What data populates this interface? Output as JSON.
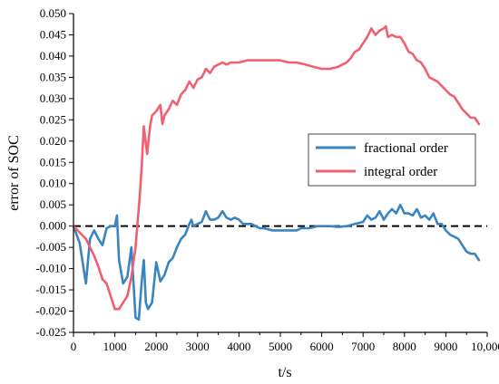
{
  "chart_data": {
    "type": "line",
    "xlabel": "t/s",
    "ylabel": "error of SOC",
    "xlim": [
      0,
      10000
    ],
    "ylim": [
      -0.025,
      0.05
    ],
    "x_ticks": [
      0,
      1000,
      2000,
      3000,
      4000,
      5000,
      6000,
      7000,
      8000,
      9000,
      10000
    ],
    "x_tick_labels": [
      "0",
      "1000",
      "2000",
      "3000",
      "4000",
      "5000",
      "6000",
      "7000",
      "8000",
      "9000",
      "10,000"
    ],
    "y_ticks": [
      -0.025,
      -0.02,
      -0.015,
      -0.01,
      -0.005,
      0.0,
      0.005,
      0.01,
      0.015,
      0.02,
      0.025,
      0.03,
      0.035,
      0.04,
      0.045,
      0.05
    ],
    "y_tick_labels": [
      "-0.025",
      "-0.020",
      "-0.015",
      "-0.010",
      "-0.005",
      "0.000",
      "0.005",
      "0.010",
      "0.015",
      "0.020",
      "0.025",
      "0.030",
      "0.035",
      "0.040",
      "0.045",
      "0.050"
    ],
    "legend_position": "right",
    "reference_line": {
      "y": 0.0,
      "style": "dashed",
      "color": "#000000"
    },
    "series": [
      {
        "name": "fractional order",
        "color": "#3a84c0",
        "points": [
          [
            0,
            0.0
          ],
          [
            150,
            -0.004
          ],
          [
            300,
            -0.0135
          ],
          [
            400,
            -0.003
          ],
          [
            500,
            -0.001
          ],
          [
            600,
            -0.003
          ],
          [
            700,
            -0.0045
          ],
          [
            800,
            -0.0005
          ],
          [
            900,
            0.0
          ],
          [
            1000,
            0.0
          ],
          [
            1050,
            0.0025
          ],
          [
            1100,
            -0.008
          ],
          [
            1200,
            -0.0135
          ],
          [
            1300,
            -0.012
          ],
          [
            1400,
            -0.005
          ],
          [
            1500,
            -0.0215
          ],
          [
            1580,
            -0.022
          ],
          [
            1650,
            -0.013
          ],
          [
            1700,
            -0.008
          ],
          [
            1750,
            -0.018
          ],
          [
            1800,
            -0.0195
          ],
          [
            1900,
            -0.018
          ],
          [
            2000,
            -0.0085
          ],
          [
            2100,
            -0.013
          ],
          [
            2200,
            -0.0115
          ],
          [
            2300,
            -0.0085
          ],
          [
            2400,
            -0.0075
          ],
          [
            2500,
            -0.005
          ],
          [
            2600,
            -0.003
          ],
          [
            2700,
            -0.002
          ],
          [
            2800,
            0.0005
          ],
          [
            2850,
            0.0015
          ],
          [
            2900,
            0.0
          ],
          [
            3000,
            0.0005
          ],
          [
            3100,
            0.001
          ],
          [
            3200,
            0.0035
          ],
          [
            3300,
            0.0015
          ],
          [
            3400,
            0.0015
          ],
          [
            3500,
            0.002
          ],
          [
            3600,
            0.0035
          ],
          [
            3700,
            0.002
          ],
          [
            3800,
            0.0015
          ],
          [
            3900,
            0.002
          ],
          [
            4000,
            0.0015
          ],
          [
            4100,
            0.0005
          ],
          [
            4200,
            0.0005
          ],
          [
            4300,
            0.0005
          ],
          [
            4400,
            0.0
          ],
          [
            4500,
            -0.0005
          ],
          [
            4600,
            -0.0005
          ],
          [
            4800,
            -0.001
          ],
          [
            5000,
            -0.001
          ],
          [
            5200,
            -0.001
          ],
          [
            5400,
            -0.001
          ],
          [
            5500,
            -0.0005
          ],
          [
            5700,
            -0.0005
          ],
          [
            5900,
            0.0
          ],
          [
            6000,
            0.0
          ],
          [
            6200,
            0.0
          ],
          [
            6400,
            -0.0002
          ],
          [
            6600,
            0.0
          ],
          [
            6800,
            0.0005
          ],
          [
            7000,
            0.001
          ],
          [
            7100,
            0.0025
          ],
          [
            7200,
            0.0015
          ],
          [
            7300,
            0.002
          ],
          [
            7400,
            0.0035
          ],
          [
            7500,
            0.0015
          ],
          [
            7600,
            0.003
          ],
          [
            7700,
            0.004
          ],
          [
            7800,
            0.003
          ],
          [
            7900,
            0.005
          ],
          [
            8000,
            0.003
          ],
          [
            8100,
            0.003
          ],
          [
            8200,
            0.0025
          ],
          [
            8300,
            0.004
          ],
          [
            8400,
            0.002
          ],
          [
            8500,
            0.0025
          ],
          [
            8600,
            0.0015
          ],
          [
            8700,
            0.003
          ],
          [
            8800,
            0.0005
          ],
          [
            8900,
            0.0005
          ],
          [
            9000,
            -0.001
          ],
          [
            9100,
            -0.002
          ],
          [
            9200,
            -0.0025
          ],
          [
            9300,
            -0.003
          ],
          [
            9400,
            -0.0045
          ],
          [
            9500,
            -0.006
          ],
          [
            9600,
            -0.0065
          ],
          [
            9700,
            -0.0065
          ],
          [
            9800,
            -0.008
          ]
        ]
      },
      {
        "name": "integral order",
        "color": "#f06070",
        "points": [
          [
            0,
            0.0
          ],
          [
            200,
            -0.002
          ],
          [
            300,
            -0.003
          ],
          [
            400,
            -0.005
          ],
          [
            500,
            -0.007
          ],
          [
            600,
            -0.0095
          ],
          [
            700,
            -0.0125
          ],
          [
            800,
            -0.0135
          ],
          [
            900,
            -0.0165
          ],
          [
            1000,
            -0.0195
          ],
          [
            1100,
            -0.0195
          ],
          [
            1200,
            -0.018
          ],
          [
            1300,
            -0.0165
          ],
          [
            1400,
            -0.012
          ],
          [
            1500,
            -0.005
          ],
          [
            1600,
            0.007
          ],
          [
            1650,
            0.014
          ],
          [
            1700,
            0.0235
          ],
          [
            1780,
            0.017
          ],
          [
            1850,
            0.0235
          ],
          [
            1900,
            0.026
          ],
          [
            2000,
            0.027
          ],
          [
            2100,
            0.0285
          ],
          [
            2150,
            0.024
          ],
          [
            2200,
            0.026
          ],
          [
            2300,
            0.0275
          ],
          [
            2400,
            0.0295
          ],
          [
            2500,
            0.0285
          ],
          [
            2600,
            0.031
          ],
          [
            2700,
            0.032
          ],
          [
            2800,
            0.034
          ],
          [
            2900,
            0.0325
          ],
          [
            3000,
            0.0345
          ],
          [
            3100,
            0.035
          ],
          [
            3200,
            0.037
          ],
          [
            3300,
            0.036
          ],
          [
            3400,
            0.0375
          ],
          [
            3500,
            0.038
          ],
          [
            3600,
            0.0385
          ],
          [
            3700,
            0.038
          ],
          [
            3800,
            0.0385
          ],
          [
            4000,
            0.0385
          ],
          [
            4200,
            0.039
          ],
          [
            4500,
            0.039
          ],
          [
            4800,
            0.039
          ],
          [
            5000,
            0.039
          ],
          [
            5200,
            0.0385
          ],
          [
            5400,
            0.0385
          ],
          [
            5600,
            0.038
          ],
          [
            5800,
            0.0375
          ],
          [
            6000,
            0.037
          ],
          [
            6200,
            0.037
          ],
          [
            6400,
            0.0375
          ],
          [
            6500,
            0.038
          ],
          [
            6600,
            0.0385
          ],
          [
            6700,
            0.0395
          ],
          [
            6800,
            0.041
          ],
          [
            6900,
            0.0415
          ],
          [
            7000,
            0.043
          ],
          [
            7100,
            0.0445
          ],
          [
            7200,
            0.0465
          ],
          [
            7300,
            0.045
          ],
          [
            7400,
            0.046
          ],
          [
            7500,
            0.0465
          ],
          [
            7550,
            0.047
          ],
          [
            7600,
            0.0445
          ],
          [
            7700,
            0.045
          ],
          [
            7800,
            0.0445
          ],
          [
            7900,
            0.0445
          ],
          [
            8000,
            0.043
          ],
          [
            8100,
            0.041
          ],
          [
            8200,
            0.0405
          ],
          [
            8300,
            0.039
          ],
          [
            8400,
            0.0385
          ],
          [
            8500,
            0.037
          ],
          [
            8600,
            0.035
          ],
          [
            8700,
            0.0345
          ],
          [
            8800,
            0.034
          ],
          [
            8900,
            0.033
          ],
          [
            9000,
            0.032
          ],
          [
            9100,
            0.031
          ],
          [
            9200,
            0.0305
          ],
          [
            9300,
            0.029
          ],
          [
            9400,
            0.0275
          ],
          [
            9500,
            0.0265
          ],
          [
            9600,
            0.0255
          ],
          [
            9700,
            0.0255
          ],
          [
            9800,
            0.024
          ]
        ]
      }
    ]
  }
}
